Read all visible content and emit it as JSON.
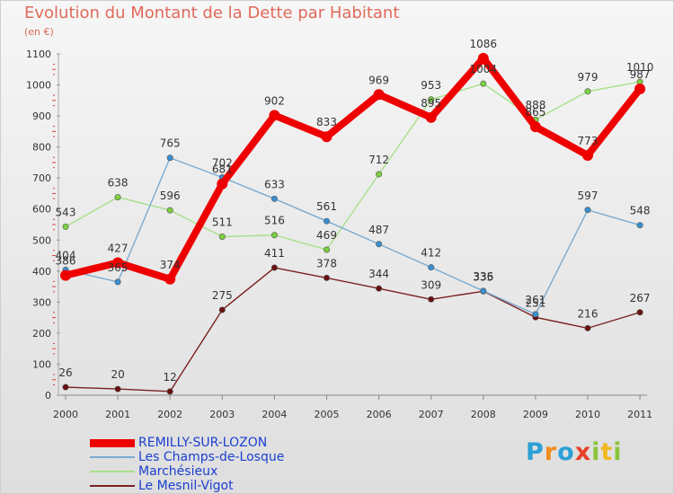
{
  "header": {
    "title": "Evolution du Montant de la Dette par Habitant",
    "subtitle": "(en €)"
  },
  "brand": {
    "letters": [
      "P",
      "r",
      "o",
      "x",
      "i",
      "t",
      "i"
    ],
    "colors": [
      "#2aa0d6",
      "#f08c1e",
      "#2aa0d6",
      "#e8402a",
      "#8cc43c",
      "#f0b81e",
      "#8cc43c"
    ]
  },
  "chart_data": {
    "type": "line",
    "title": "Evolution du Montant de la Dette par Habitant",
    "subtitle": "(en €)",
    "xlabel": "",
    "ylabel": "",
    "ylim": [
      0,
      1100
    ],
    "yticks": [
      0,
      100,
      200,
      300,
      400,
      500,
      600,
      700,
      800,
      900,
      1000,
      1100
    ],
    "grid": false,
    "legend_position": "bottom-left",
    "categories": [
      "2000",
      "2001",
      "2002",
      "2003",
      "2004",
      "2005",
      "2006",
      "2007",
      "2008",
      "2009",
      "2010",
      "2011"
    ],
    "series": [
      {
        "name": "REMILLY-SUR-LOZON",
        "color": "#ee0000",
        "marker_color": "#ee0000",
        "width": "thick",
        "values": [
          386,
          427,
          374,
          681,
          902,
          833,
          969,
          895,
          1086,
          865,
          773,
          987
        ],
        "labels": [
          "386",
          "427",
          "374",
          "681",
          "902",
          "833",
          "969",
          "895",
          "1086",
          "865",
          "773",
          "987"
        ]
      },
      {
        "name": "Les Champs-de-Losque",
        "color": "#7aaad0",
        "marker_color": "#3a8fd0",
        "width": "thin",
        "values": [
          404,
          365,
          765,
          702,
          633,
          561,
          487,
          412,
          336,
          261,
          597,
          548
        ],
        "labels": [
          "404",
          "365",
          "765",
          "702",
          "633",
          "561",
          "487",
          "412",
          "336",
          "261",
          "597",
          "548"
        ]
      },
      {
        "name": "Marchésieux",
        "color": "#a8e08a",
        "marker_color": "#7ad040",
        "width": "thin",
        "values": [
          543,
          638,
          596,
          511,
          516,
          469,
          712,
          953,
          1004,
          888,
          979,
          1010
        ],
        "labels": [
          "543",
          "638",
          "596",
          "511",
          "516",
          "469",
          "712",
          "953",
          "1004",
          "888",
          "979",
          "1010"
        ]
      },
      {
        "name": "Le Mesnil-Vigot",
        "color": "#7a2020",
        "marker_color": "#6a1010",
        "width": "thin",
        "values": [
          26,
          20,
          12,
          275,
          411,
          378,
          344,
          309,
          335,
          251,
          216,
          267
        ],
        "labels": [
          "26",
          "20",
          "12",
          "275",
          "411",
          "378",
          "344",
          "309",
          "335",
          "251",
          "216",
          "267"
        ]
      }
    ]
  }
}
